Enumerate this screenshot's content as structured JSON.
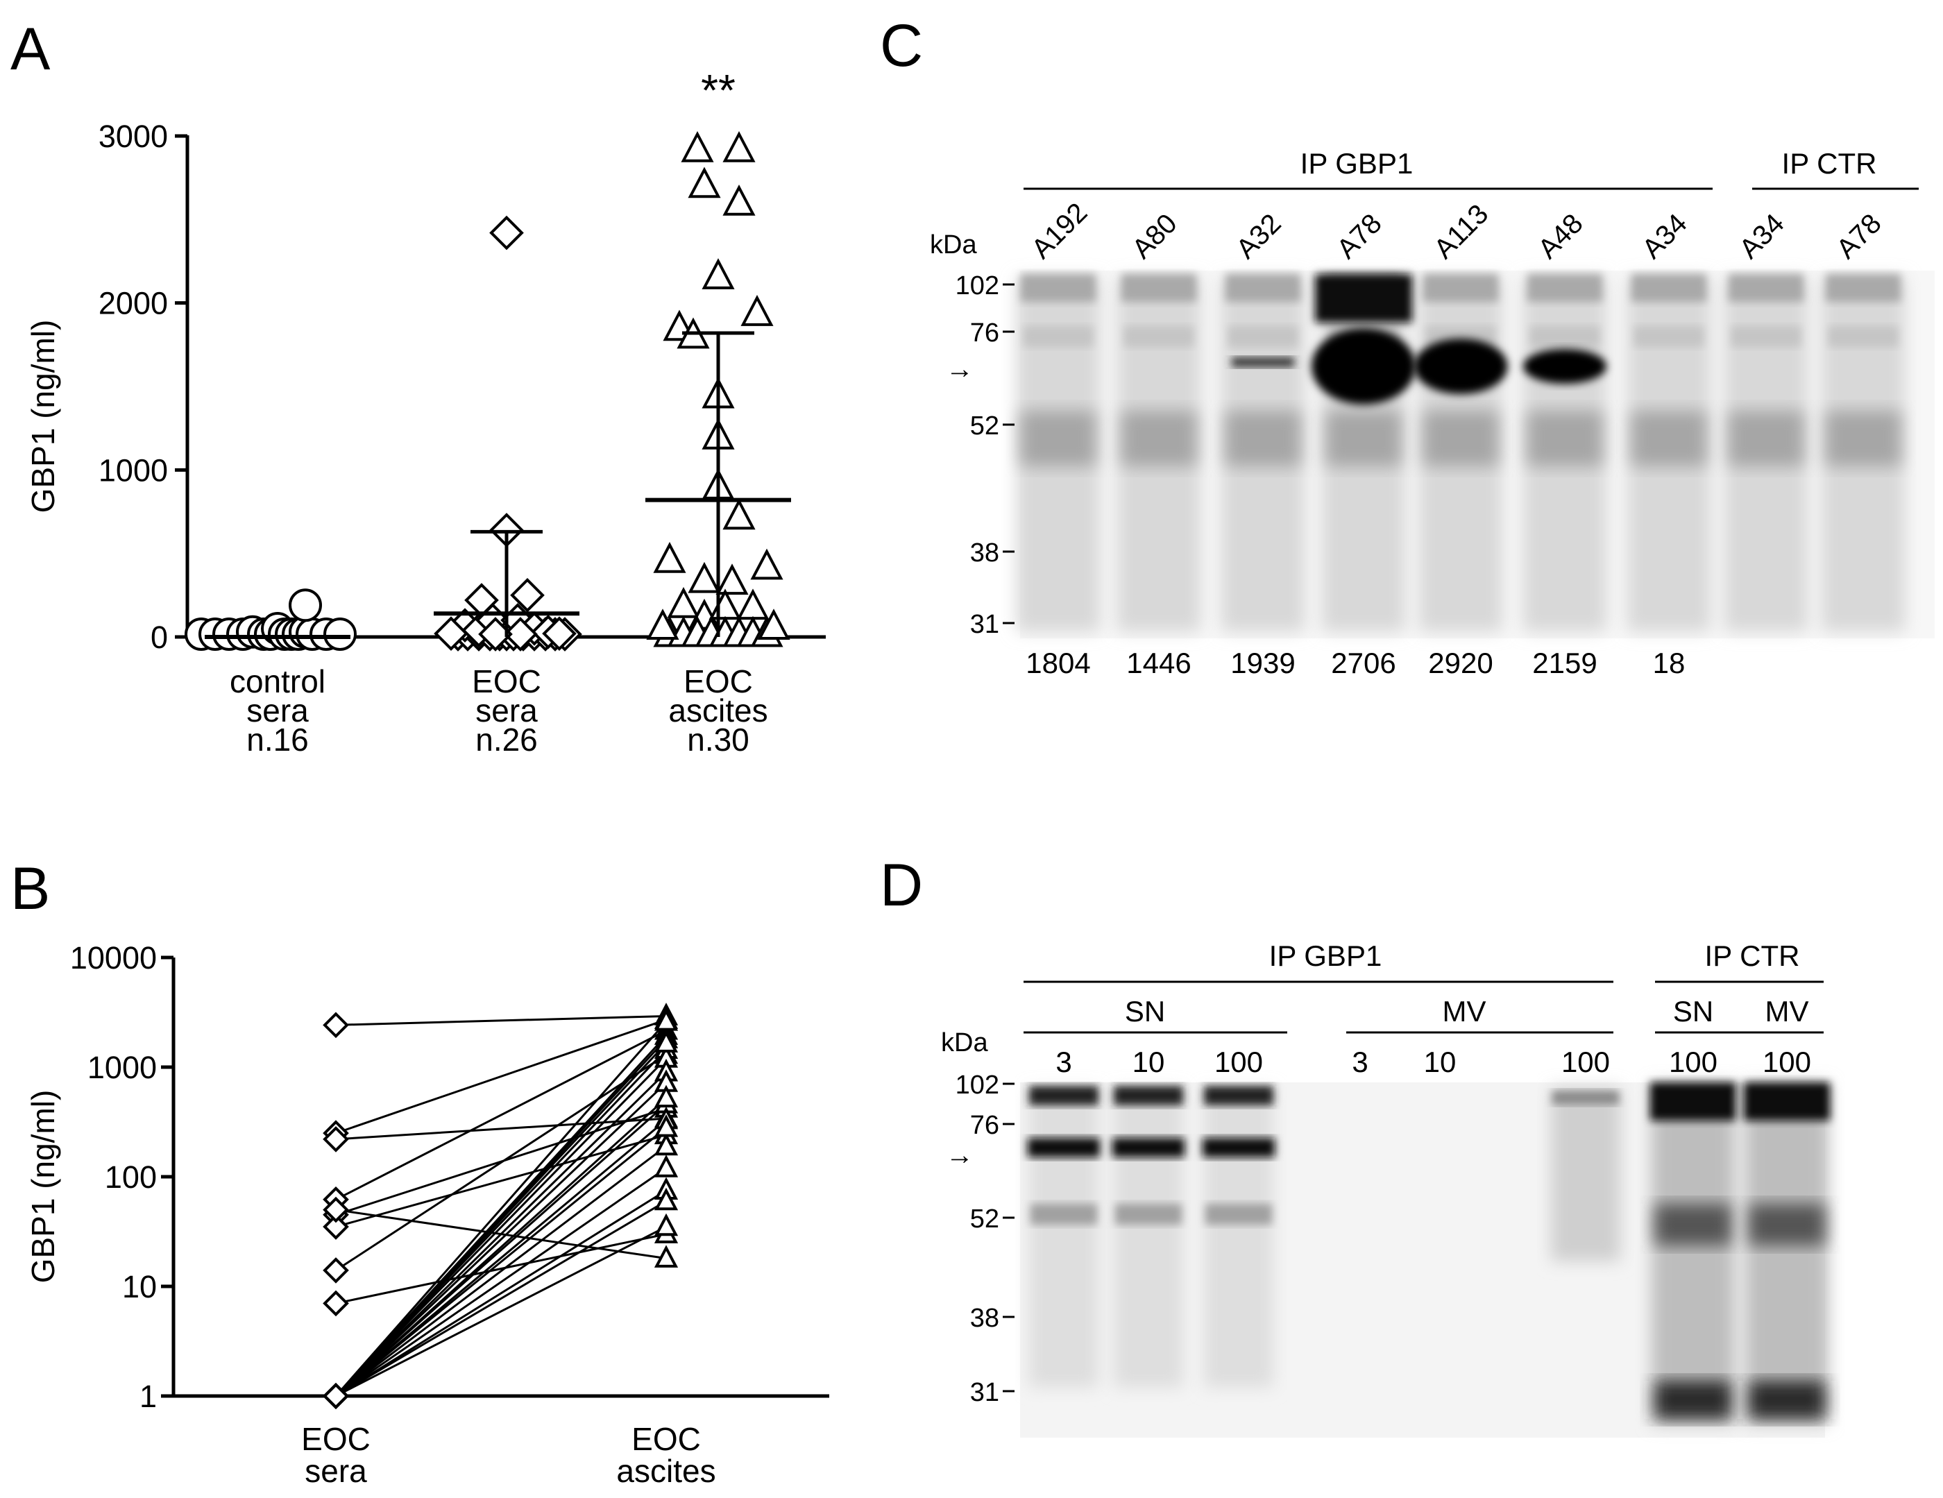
{
  "panel_labels": {
    "a": "A",
    "b": "B",
    "c": "C",
    "d": "D"
  },
  "chart_data": [
    {
      "panel": "A",
      "type": "scatter",
      "ylabel": "GBP1 (ng/ml)",
      "ylim": [
        0,
        3000
      ],
      "yticks": [
        "0",
        "1000",
        "2000",
        "3000"
      ],
      "categories": [
        {
          "lines": [
            "control",
            "sera",
            "n.16"
          ],
          "marker": "circle"
        },
        {
          "lines": [
            "EOC",
            "sera",
            "n.26"
          ],
          "marker": "diamond"
        },
        {
          "lines": [
            "EOC",
            "ascites",
            "n.30"
          ],
          "marker": "triangle"
        }
      ],
      "annotation": "**",
      "groups": [
        {
          "marker": "circle",
          "points": [
            [
              -0.55,
              0
            ],
            [
              -0.45,
              0
            ],
            [
              -0.35,
              0
            ],
            [
              -0.25,
              0
            ],
            [
              -0.18,
              30
            ],
            [
              -0.1,
              0
            ],
            [
              -0.05,
              0
            ],
            [
              0,
              50
            ],
            [
              0.05,
              0
            ],
            [
              0.1,
              0
            ],
            [
              0.15,
              0
            ],
            [
              0.2,
              30
            ],
            [
              0.25,
              0
            ],
            [
              0.35,
              0
            ],
            [
              0.45,
              0
            ],
            [
              0.2,
              190
            ]
          ],
          "median": 0,
          "iqr_high": 0
        },
        {
          "marker": "diamond",
          "points": [
            [
              0,
              2420
            ],
            [
              0,
              640
            ],
            [
              -0.35,
              0
            ],
            [
              -0.28,
              0
            ],
            [
              -0.2,
              0
            ],
            [
              -0.12,
              0
            ],
            [
              -0.05,
              0
            ],
            [
              0,
              0
            ],
            [
              0.05,
              0
            ],
            [
              0.12,
              0
            ],
            [
              0.2,
              0
            ],
            [
              0.28,
              0
            ],
            [
              0.35,
              0
            ],
            [
              0.42,
              0
            ],
            [
              -0.3,
              70
            ],
            [
              -0.2,
              40
            ],
            [
              -0.1,
              100
            ],
            [
              -0.18,
              220
            ],
            [
              0.15,
              250
            ],
            [
              0.08,
              100
            ],
            [
              0.2,
              50
            ],
            [
              0.3,
              30
            ],
            [
              -0.4,
              20
            ],
            [
              0.38,
              20
            ],
            [
              0.1,
              0
            ],
            [
              -0.08,
              0
            ]
          ],
          "median": 140,
          "iqr_high": 630
        },
        {
          "marker": "triangle",
          "points": [
            [
              -0.15,
              2920
            ],
            [
              0.15,
              2920
            ],
            [
              -0.1,
              2706
            ],
            [
              0.15,
              2600
            ],
            [
              0,
              2159
            ],
            [
              -0.28,
              1850
            ],
            [
              0.28,
              1939
            ],
            [
              -0.18,
              1804
            ],
            [
              0,
              1446
            ],
            [
              0,
              1200
            ],
            [
              0,
              900
            ],
            [
              0.15,
              720
            ],
            [
              -0.35,
              460
            ],
            [
              0.35,
              420
            ],
            [
              -0.1,
              340
            ],
            [
              0.1,
              330
            ],
            [
              -0.25,
              190
            ],
            [
              0.25,
              180
            ],
            [
              -0.1,
              120
            ],
            [
              0.05,
              180
            ],
            [
              -0.35,
              0
            ],
            [
              -0.25,
              0
            ],
            [
              -0.15,
              0
            ],
            [
              -0.05,
              0
            ],
            [
              0.05,
              0
            ],
            [
              0.15,
              0
            ],
            [
              0.25,
              0
            ],
            [
              0.35,
              0
            ],
            [
              -0.4,
              60
            ],
            [
              0.4,
              60
            ]
          ],
          "median": 820,
          "iqr_low": 0,
          "iqr_high": 1820
        }
      ]
    },
    {
      "panel": "B",
      "type": "line",
      "scale": "log",
      "ylabel": "GBP1 (ng/ml)",
      "ylim": [
        1,
        10000
      ],
      "yticks": [
        "1",
        "10",
        "100",
        "1000",
        "10000"
      ],
      "categories": [
        [
          "EOC",
          "sera"
        ],
        [
          "EOC",
          "ascites"
        ]
      ],
      "pairs": [
        [
          2420,
          2920
        ],
        [
          250,
          2706
        ],
        [
          220,
          340
        ],
        [
          62,
          2159
        ],
        [
          45,
          420
        ],
        [
          35,
          240
        ],
        [
          14,
          1300
        ],
        [
          7,
          30
        ],
        [
          50,
          18
        ],
        [
          1,
          1939
        ],
        [
          1,
          1804
        ],
        [
          1,
          1446
        ],
        [
          1,
          1200
        ],
        [
          1,
          900
        ],
        [
          1,
          720
        ],
        [
          1,
          460
        ],
        [
          1,
          330
        ],
        [
          1,
          190
        ],
        [
          1,
          120
        ],
        [
          1,
          75
        ],
        [
          1,
          60
        ],
        [
          1,
          35
        ],
        [
          1,
          2600
        ],
        [
          1,
          1650
        ],
        [
          1,
          520
        ],
        [
          1,
          280
        ]
      ]
    }
  ],
  "blots": {
    "c": {
      "ip_main": "IP GBP1",
      "ip_ctr": "IP CTR",
      "kda": "kDa",
      "lanes": [
        "A192",
        "A80",
        "A32",
        "A78",
        "A113",
        "A48",
        "A34",
        "A34",
        "A78"
      ],
      "markers": [
        "102",
        "76",
        "52",
        "38",
        "31"
      ],
      "values": [
        "1804",
        "1446",
        "1939",
        "2706",
        "2920",
        "2159",
        "18"
      ],
      "arrow": "→"
    },
    "d": {
      "ip_main": "IP GBP1",
      "ip_ctr": "IP CTR",
      "sn": "SN",
      "mv": "MV",
      "sn_ctr": "SN",
      "mv_ctr": "MV",
      "kda": "kDa",
      "lanes": [
        "3",
        "10",
        "100",
        "3",
        "10",
        "100",
        "100",
        "100"
      ],
      "markers": [
        "102",
        "76",
        "52",
        "38",
        "31"
      ],
      "arrow": "→"
    }
  }
}
